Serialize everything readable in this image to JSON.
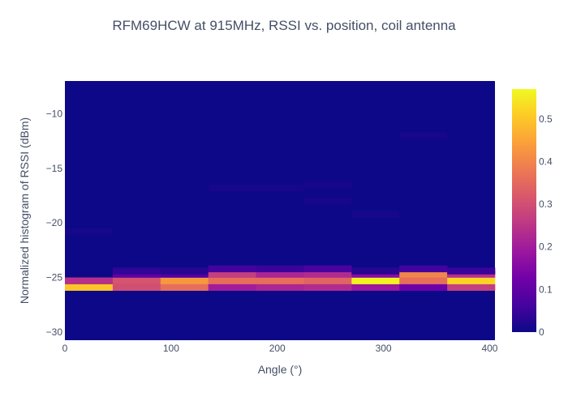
{
  "chart_data": {
    "type": "heatmap",
    "title": "RFM69HCW at 915MHz, RSSI vs. position, coil antenna",
    "xlabel": "Angle (°)",
    "ylabel": "Normalized histogram of RSSI (dBm)",
    "xlim": [
      0,
      405
    ],
    "ylim": [
      -30.75,
      -7
    ],
    "x_ticks": [
      0,
      100,
      200,
      300,
      400
    ],
    "y_ticks": [
      -30,
      -25,
      -20,
      -15,
      -10
    ],
    "x": [
      0,
      45,
      90,
      135,
      180,
      225,
      270,
      315,
      360
    ],
    "x_bin_width": 45,
    "y_bin_height": 0.6,
    "colorscale": [
      "#0d0887",
      "#46039f",
      "#7201a8",
      "#9c179e",
      "#bd3786",
      "#d8576b",
      "#ed7953",
      "#fb9f3a",
      "#fdca26",
      "#f0f921"
    ],
    "colorbar": {
      "min": 0,
      "max": 0.57,
      "ticks": [
        0,
        0.1,
        0.2,
        0.3,
        0.4,
        0.5
      ]
    },
    "cells": [
      {
        "x": 0,
        "y": -25.9,
        "value": 0.5
      },
      {
        "x": 0,
        "y": -25.3,
        "value": 0.24
      },
      {
        "x": 0,
        "y": -20.8,
        "value": 0.01
      },
      {
        "x": 45,
        "y": -25.9,
        "value": 0.3
      },
      {
        "x": 45,
        "y": -25.3,
        "value": 0.31
      },
      {
        "x": 45,
        "y": -24.7,
        "value": 0.1
      },
      {
        "x": 45,
        "y": -24.4,
        "value": 0.04
      },
      {
        "x": 90,
        "y": -25.9,
        "value": 0.36
      },
      {
        "x": 90,
        "y": -25.3,
        "value": 0.43
      },
      {
        "x": 90,
        "y": -24.7,
        "value": 0.08
      },
      {
        "x": 90,
        "y": -24.4,
        "value": 0.03
      },
      {
        "x": 135,
        "y": -25.9,
        "value": 0.2
      },
      {
        "x": 135,
        "y": -25.3,
        "value": 0.36
      },
      {
        "x": 135,
        "y": -24.7,
        "value": 0.27
      },
      {
        "x": 135,
        "y": -24.2,
        "value": 0.06
      },
      {
        "x": 135,
        "y": -16.8,
        "value": 0.01
      },
      {
        "x": 180,
        "y": -25.9,
        "value": 0.22
      },
      {
        "x": 180,
        "y": -25.3,
        "value": 0.36
      },
      {
        "x": 180,
        "y": -24.7,
        "value": 0.22
      },
      {
        "x": 180,
        "y": -24.2,
        "value": 0.05
      },
      {
        "x": 180,
        "y": -16.8,
        "value": 0.01
      },
      {
        "x": 225,
        "y": -25.9,
        "value": 0.23
      },
      {
        "x": 225,
        "y": -25.3,
        "value": 0.34
      },
      {
        "x": 225,
        "y": -24.7,
        "value": 0.23
      },
      {
        "x": 225,
        "y": -24.2,
        "value": 0.07
      },
      {
        "x": 225,
        "y": -16.5,
        "value": 0.01
      },
      {
        "x": 225,
        "y": -18.0,
        "value": 0.01
      },
      {
        "x": 270,
        "y": -25.9,
        "value": 0.19
      },
      {
        "x": 270,
        "y": -25.3,
        "value": 0.56
      },
      {
        "x": 270,
        "y": -24.7,
        "value": 0.16
      },
      {
        "x": 270,
        "y": -24.4,
        "value": 0.03
      },
      {
        "x": 270,
        "y": -19.2,
        "value": 0.01
      },
      {
        "x": 315,
        "y": -25.9,
        "value": 0.12
      },
      {
        "x": 315,
        "y": -25.3,
        "value": 0.36
      },
      {
        "x": 315,
        "y": -24.7,
        "value": 0.4
      },
      {
        "x": 315,
        "y": -24.2,
        "value": 0.06
      },
      {
        "x": 315,
        "y": -12.0,
        "value": 0.01
      },
      {
        "x": 360,
        "y": -25.9,
        "value": 0.27
      },
      {
        "x": 360,
        "y": -25.3,
        "value": 0.52
      },
      {
        "x": 360,
        "y": -24.7,
        "value": 0.24
      },
      {
        "x": 360,
        "y": -24.4,
        "value": 0.05
      }
    ]
  }
}
